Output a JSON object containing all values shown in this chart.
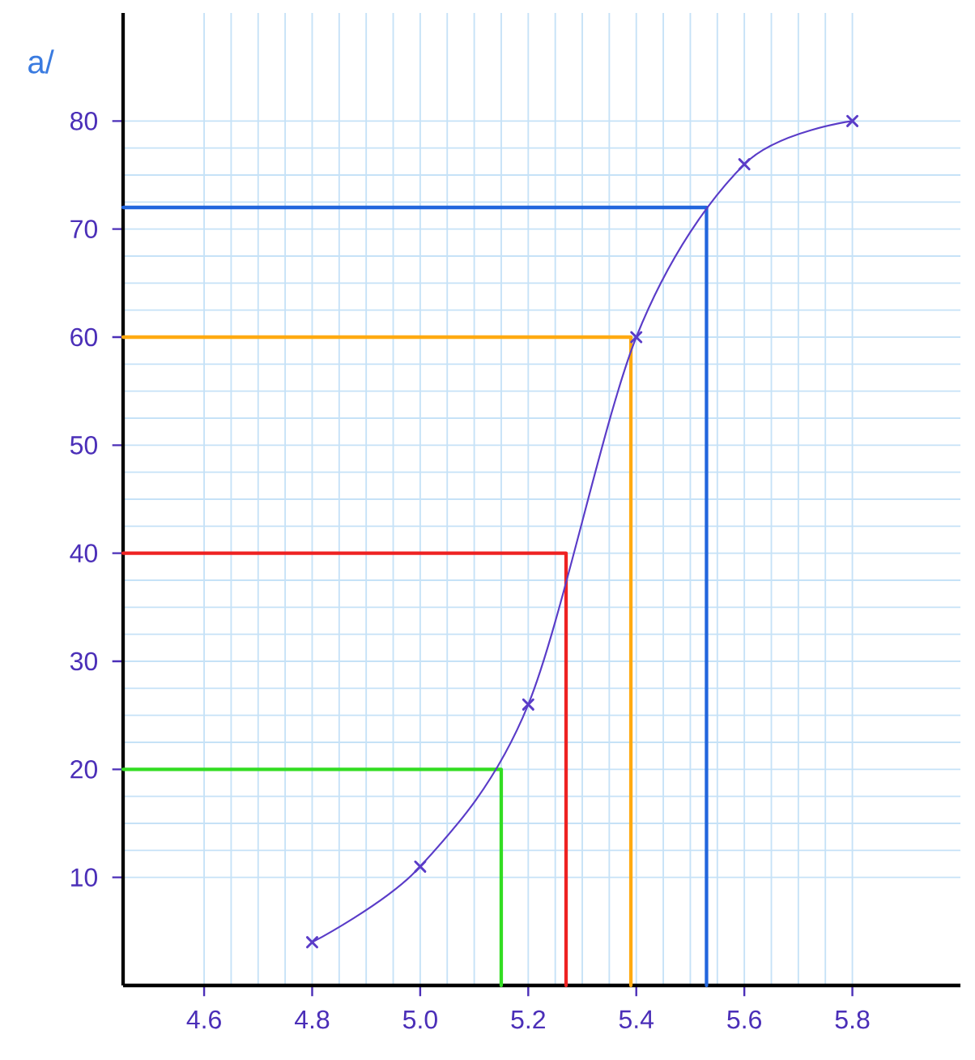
{
  "chart_data": {
    "type": "line",
    "annotations": [
      "a/"
    ],
    "xlim": [
      4.45,
      6.0
    ],
    "ylim": [
      0,
      90
    ],
    "xticks": [
      4.6,
      4.8,
      {
        "value": 5.0,
        "label": "5.0"
      },
      5.2,
      5.4,
      5.6,
      5.8
    ],
    "yticks": [
      10,
      20,
      30,
      40,
      50,
      60,
      70,
      80
    ],
    "grid": true,
    "marker": "cross",
    "series": [
      {
        "color": "#33dd22",
        "marker": "none",
        "x": [
          4.45,
          5.15,
          5.15
        ],
        "values": [
          20,
          20,
          0
        ]
      },
      {
        "color": "#ee2222",
        "marker": "none",
        "x": [
          4.45,
          5.27,
          5.27
        ],
        "values": [
          40,
          40,
          0
        ]
      },
      {
        "color": "#ffaa11",
        "marker": "none",
        "x": [
          4.45,
          5.39,
          5.39
        ],
        "values": [
          60,
          60,
          0
        ]
      },
      {
        "color": "#2266dd",
        "marker": "none",
        "x": [
          4.45,
          5.53,
          5.53
        ],
        "values": [
          72,
          72,
          0
        ]
      },
      {
        "color": "#5a3cc8",
        "x": [
          4.8,
          5.0,
          5.2,
          5.4,
          5.6,
          5.8
        ],
        "values": [
          4,
          11,
          26,
          60,
          76,
          80
        ]
      }
    ]
  }
}
